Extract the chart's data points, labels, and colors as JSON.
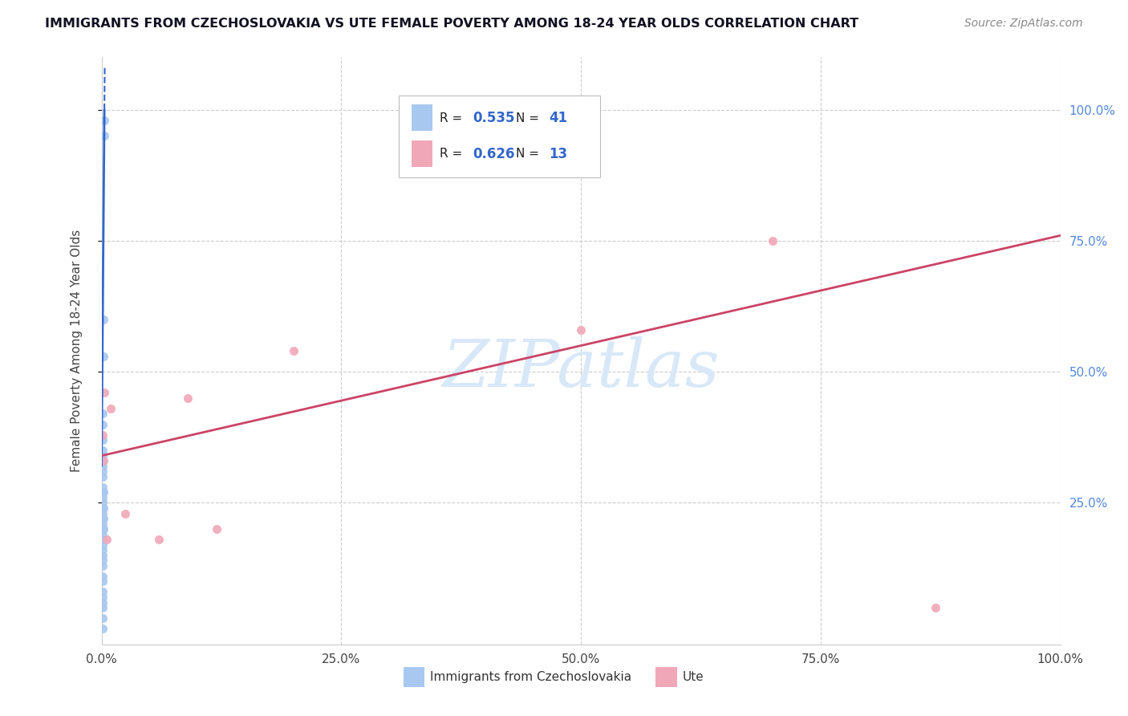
{
  "title": "IMMIGRANTS FROM CZECHOSLOVAKIA VS UTE FEMALE POVERTY AMONG 18-24 YEAR OLDS CORRELATION CHART",
  "source": "Source: ZipAtlas.com",
  "ylabel": "Female Poverty Among 18-24 Year Olds",
  "blue_label": "Immigrants from Czechoslovakia",
  "pink_label": "Ute",
  "blue_R": 0.535,
  "blue_N": 41,
  "pink_R": 0.626,
  "pink_N": 13,
  "blue_color": "#a8c8f0",
  "pink_color": "#f0a8b8",
  "blue_line_color": "#3366cc",
  "pink_line_color": "#cc4466",
  "background_color": "#ffffff",
  "xlim": [
    0.0,
    1.0
  ],
  "ylim": [
    -0.02,
    1.1
  ],
  "xtick_positions": [
    0.0,
    0.25,
    0.5,
    0.75,
    1.0
  ],
  "xtick_labels": [
    "0.0%",
    "25.0%",
    "50.0%",
    "75.0%",
    "100.0%"
  ],
  "ytick_positions": [
    0.25,
    0.5,
    0.75,
    1.0
  ],
  "ytick_labels": [
    "25.0%",
    "50.0%",
    "75.0%",
    "100.0%"
  ],
  "blue_scatter_x": [
    0.003,
    0.003,
    0.002,
    0.002,
    0.001,
    0.001,
    0.001,
    0.001,
    0.001,
    0.001,
    0.001,
    0.001,
    0.001,
    0.001,
    0.001,
    0.001,
    0.001,
    0.001,
    0.001,
    0.001,
    0.001,
    0.001,
    0.001,
    0.002,
    0.002,
    0.002,
    0.002,
    0.001,
    0.001,
    0.001,
    0.001,
    0.001,
    0.001,
    0.001,
    0.001,
    0.001,
    0.001,
    0.001,
    0.001,
    0.001,
    0.001
  ],
  "blue_scatter_y": [
    0.98,
    0.95,
    0.6,
    0.53,
    0.42,
    0.4,
    0.37,
    0.35,
    0.34,
    0.33,
    0.32,
    0.31,
    0.3,
    0.28,
    0.27,
    0.26,
    0.25,
    0.24,
    0.23,
    0.22,
    0.21,
    0.2,
    0.17,
    0.27,
    0.24,
    0.22,
    0.2,
    0.19,
    0.18,
    0.16,
    0.15,
    0.14,
    0.13,
    0.11,
    0.1,
    0.08,
    0.07,
    0.06,
    0.05,
    0.03,
    0.01
  ],
  "pink_scatter_x": [
    0.001,
    0.002,
    0.003,
    0.005,
    0.01,
    0.025,
    0.06,
    0.09,
    0.12,
    0.2,
    0.5,
    0.7,
    0.87
  ],
  "pink_scatter_y": [
    0.38,
    0.33,
    0.46,
    0.18,
    0.43,
    0.23,
    0.18,
    0.45,
    0.2,
    0.54,
    0.58,
    0.75,
    0.05
  ],
  "blue_line_x0": 0.0,
  "blue_line_y0": 0.32,
  "blue_line_x1": 0.003,
  "blue_line_y1": 1.0,
  "blue_line_dash_y1": 1.08,
  "pink_line_x0": 0.0,
  "pink_line_y0": 0.34,
  "pink_line_x1": 1.0,
  "pink_line_y1": 0.76,
  "watermark_text": "ZIPatlas",
  "watermark_color": "#d8e8f8",
  "watermark_fontsize": 60
}
